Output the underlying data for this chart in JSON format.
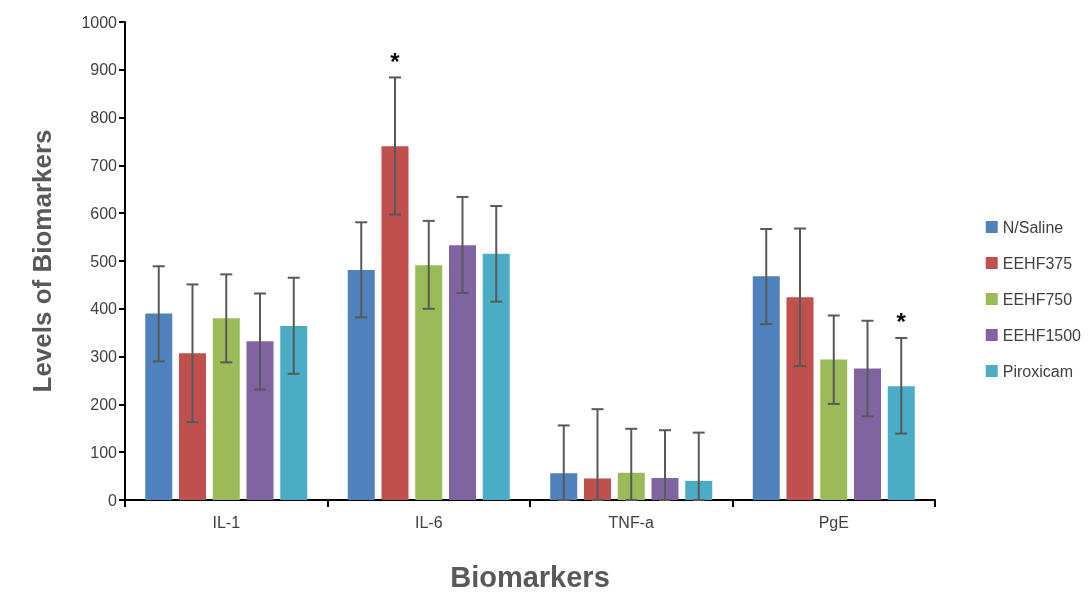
{
  "chart_data": {
    "type": "bar",
    "xlabel": "Biomarkers",
    "ylabel": "Levels of Biomarkers",
    "categories": [
      "IL-1",
      "IL-6",
      "TNF-a",
      "PgE"
    ],
    "series": [
      {
        "name": "N/Saline",
        "color": "#4f81bd",
        "values": [
          390,
          481,
          56,
          468
        ],
        "errors": [
          [
            290,
            489
          ],
          [
            382,
            581
          ],
          [
            0,
            156
          ],
          [
            368,
            567
          ]
        ]
      },
      {
        "name": "EEHF375",
        "color": "#c0504d",
        "values": [
          307,
          740,
          45,
          424
        ],
        "errors": [
          [
            163,
            451
          ],
          [
            597,
            884
          ],
          [
            0,
            190
          ],
          [
            280,
            568
          ]
        ]
      },
      {
        "name": "EEHF750",
        "color": "#9bbb59",
        "values": [
          380,
          491,
          57,
          294
        ],
        "errors": [
          [
            288,
            472
          ],
          [
            400,
            584
          ],
          [
            0,
            149
          ],
          [
            201,
            386
          ]
        ]
      },
      {
        "name": "EEHF1500",
        "color": "#8064a2",
        "values": [
          332,
          533,
          46,
          275
        ],
        "errors": [
          [
            231,
            432
          ],
          [
            433,
            634
          ],
          [
            0,
            146
          ],
          [
            175,
            375
          ]
        ]
      },
      {
        "name": "Piroxicam",
        "color": "#4bacc6",
        "values": [
          364,
          515,
          40,
          238
        ],
        "errors": [
          [
            264,
            465
          ],
          [
            415,
            615
          ],
          [
            0,
            141
          ],
          [
            139,
            339
          ]
        ]
      }
    ],
    "annotations": [
      "*",
      {
        "text": "*",
        "x": "PgE",
        "y": 339
      }
    ],
    "ylim": [
      0,
      1000
    ],
    "yticks": [
      0,
      100,
      200,
      300,
      400,
      500,
      600,
      700,
      800,
      900,
      1000
    ],
    "grid": false,
    "legend": "right"
  }
}
